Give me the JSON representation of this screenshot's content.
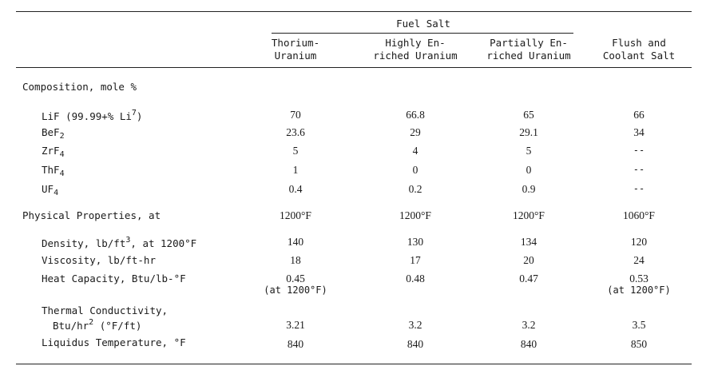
{
  "header": {
    "group": "Fuel Salt",
    "columns": [
      [
        "Thorium-",
        "Uranium"
      ],
      [
        "Highly En-",
        "riched Uranium"
      ],
      [
        "Partially En-",
        "riched Uranium"
      ],
      [
        "Flush and",
        "Coolant Salt"
      ]
    ]
  },
  "composition": {
    "title": "Composition, mole %",
    "rows": [
      {
        "label": "LiF (99.99+% Li",
        "sup": "7",
        "suffix": ")",
        "values": [
          "70",
          "66.8",
          "65",
          "66"
        ]
      },
      {
        "label": "BeF",
        "sub": "2",
        "values": [
          "23.6",
          "29",
          "29.1",
          "34"
        ]
      },
      {
        "label": "ZrF",
        "sub": "4",
        "values": [
          "5",
          "4",
          "5",
          "--"
        ]
      },
      {
        "label": "ThF",
        "sub": "4",
        "values": [
          "1",
          "0",
          "0",
          "--"
        ]
      },
      {
        "label": "UF",
        "sub": "4",
        "values": [
          "0.4",
          "0.2",
          "0.9",
          "--"
        ]
      }
    ]
  },
  "physical": {
    "title": "Physical Properties, at",
    "temps": [
      "1200°F",
      "1200°F",
      "1200°F",
      "1060°F"
    ],
    "density": {
      "label": "Density, lb/ft",
      "sup": "3",
      "suffix": ", at 1200°F",
      "values": [
        "140",
        "130",
        "134",
        "120"
      ]
    },
    "viscosity": {
      "label": "Viscosity, lb/ft-hr",
      "values": [
        "18",
        "17",
        "20",
        "24"
      ]
    },
    "heat_capacity": {
      "label": "Heat Capacity, Btu/lb-°F",
      "values": [
        "0.45",
        "0.48",
        "0.47",
        "0.53"
      ],
      "notes": [
        "(at 1200°F)",
        "",
        "",
        "(at 1200°F)"
      ]
    },
    "conductivity": {
      "label1": "Thermal Conductivity,",
      "label2": "Btu/hr",
      "sup": "2",
      "suffix": " (°F/ft)",
      "values": [
        "3.21",
        "3.2",
        "3.2",
        "3.5"
      ]
    },
    "liquidus": {
      "label": "Liquidus Temperature, °F",
      "values": [
        "840",
        "840",
        "840",
        "850"
      ]
    }
  }
}
